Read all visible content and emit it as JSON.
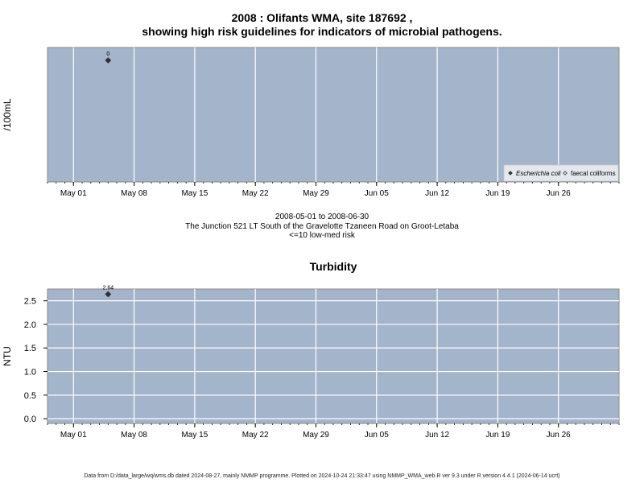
{
  "header": {
    "title_line1": "2008 : Olifants WMA, site 187692 ,",
    "title_line2": "showing high risk guidelines for indicators of microbial pathogens."
  },
  "subtitle": {
    "date_range": "2008-05-01 to 2008-06-30",
    "location": "The Junction 521 LT South of the Gravelotte Tzaneen Road on Groot-Letaba",
    "risk": "<=10 low-med risk"
  },
  "footer": {
    "text": "Data from D:/data_large/wq/wms.db dated 2024-08-27, mainly NMMP programme. Plotted on 2024-10-24 21:33:47 using NMMP_WMA_web.R ver 9.3 under R version 4.4.1 (2024-06-14 ucrt)"
  },
  "colors": {
    "panel_bg": "#a3b4cb",
    "grid": "#ffffff",
    "point": "#333333"
  },
  "chart_data": [
    {
      "type": "scatter",
      "title": "",
      "ylabel": "/100mL",
      "xlabel": "",
      "x_ticks": [
        "May 01",
        "May 08",
        "May 15",
        "May 22",
        "May 29",
        "Jun 05",
        "Jun 12",
        "Jun 19",
        "Jun 26"
      ],
      "x_tick_dates": [
        "2008-05-01",
        "2008-05-08",
        "2008-05-15",
        "2008-05-22",
        "2008-05-29",
        "2008-06-05",
        "2008-06-12",
        "2008-06-19",
        "2008-06-26"
      ],
      "xlim": [
        "2008-04-28",
        "2008-07-03"
      ],
      "ylim": [
        0,
        10
      ],
      "grid": true,
      "series": [
        {
          "name": "Escherichia coli",
          "marker": "filled-diamond",
          "points": [
            {
              "x": "2008-05-05",
              "y": 0,
              "label": "0"
            }
          ]
        },
        {
          "name": "faecal coliforms",
          "marker": "open-diamond",
          "points": []
        }
      ],
      "legend": {
        "position": "bottom-right"
      }
    },
    {
      "type": "scatter",
      "title": "Turbidity",
      "ylabel": "NTU",
      "xlabel": "",
      "y_ticks": [
        0.0,
        0.5,
        1.0,
        1.5,
        2.0,
        2.5
      ],
      "y_tick_labels": [
        "0.0",
        "0.5",
        "1.0",
        "1.5",
        "2.0",
        "2.5"
      ],
      "x_ticks": [
        "May 01",
        "May 08",
        "May 15",
        "May 22",
        "May 29",
        "Jun 05",
        "Jun 12",
        "Jun 19",
        "Jun 26"
      ],
      "x_tick_dates": [
        "2008-05-01",
        "2008-05-08",
        "2008-05-15",
        "2008-05-22",
        "2008-05-29",
        "2008-06-05",
        "2008-06-12",
        "2008-06-19",
        "2008-06-26"
      ],
      "xlim": [
        "2008-04-28",
        "2008-07-03"
      ],
      "ylim": [
        -0.1,
        2.75
      ],
      "grid": true,
      "series": [
        {
          "name": "",
          "marker": "filled-diamond",
          "points": [
            {
              "x": "2008-05-05",
              "y": 2.64,
              "label": "2.64"
            }
          ]
        }
      ]
    }
  ]
}
